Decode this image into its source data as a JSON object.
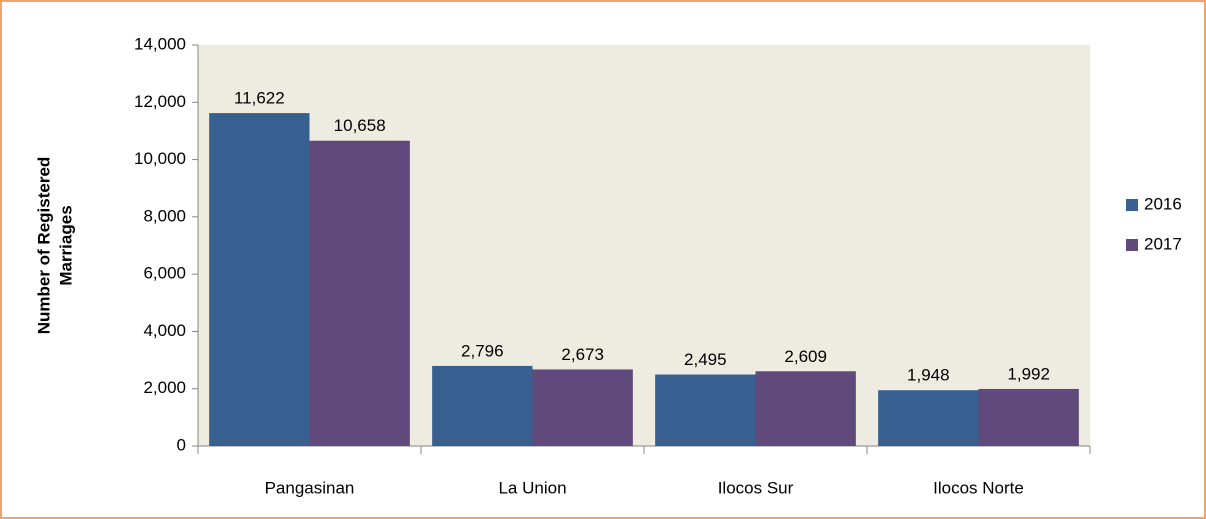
{
  "chart_data": {
    "type": "bar",
    "ylabel": [
      "Number of Registered",
      "Marriages"
    ],
    "categories": [
      "Pangasinan",
      "La Union",
      "Ilocos Sur",
      "Ilocos Norte"
    ],
    "series": [
      {
        "name": "2016",
        "color": "#375f8f",
        "values": [
          11622,
          2796,
          2495,
          1948
        ],
        "value_labels": [
          "11,622",
          "2,796",
          "2,495",
          "1,948"
        ]
      },
      {
        "name": "2017",
        "color": "#5f4a7b",
        "values": [
          10658,
          2673,
          2609,
          1992
        ],
        "value_labels": [
          "10,658",
          "2,673",
          "2,609",
          "1,992"
        ]
      }
    ],
    "ylim": [
      0,
      14000
    ],
    "yticks": [
      0,
      {
        "value": 2000,
        "label": "2,000"
      },
      {
        "value": 4000,
        "label": "4,000"
      },
      {
        "value": 6000,
        "label": "6,000"
      },
      {
        "value": 8000,
        "label": "8,000"
      },
      {
        "value": 10000,
        "label": "10,000"
      },
      {
        "value": 12000,
        "label": "12,000"
      },
      {
        "value": 14000,
        "label": "14,000"
      }
    ],
    "legend": "right",
    "plot_background": "#eeece1"
  }
}
